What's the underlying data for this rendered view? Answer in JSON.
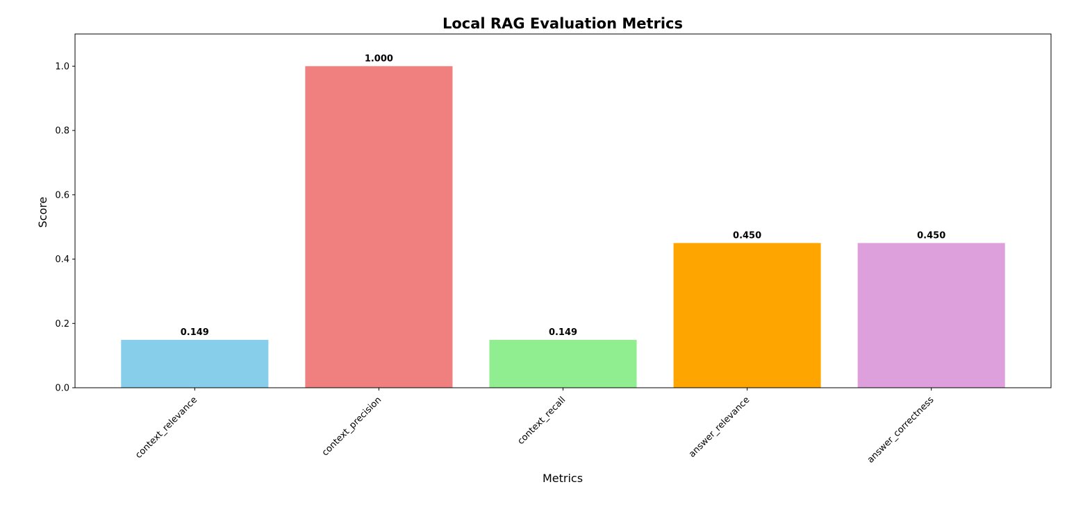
{
  "chart_data": {
    "type": "bar",
    "title": "Local RAG Evaluation Metrics",
    "xlabel": "Metrics",
    "ylabel": "Score",
    "categories": [
      "context_relevance",
      "context_precision",
      "context_recall",
      "answer_relevance",
      "answer_correctness"
    ],
    "values": [
      0.149,
      1.0,
      0.149,
      0.45,
      0.45
    ],
    "value_labels": [
      "0.149",
      "1.000",
      "0.149",
      "0.450",
      "0.450"
    ],
    "colors": [
      "#87ceeb",
      "#f08080",
      "#90ee90",
      "#ffa500",
      "#dda0dd"
    ],
    "ylim": [
      0,
      1.1
    ],
    "yticks": [
      0.0,
      0.2,
      0.4,
      0.6,
      0.8,
      1.0
    ],
    "ytick_labels": [
      "0.0",
      "0.2",
      "0.4",
      "0.6",
      "0.8",
      "1.0"
    ],
    "grid": false,
    "legend": false
  }
}
